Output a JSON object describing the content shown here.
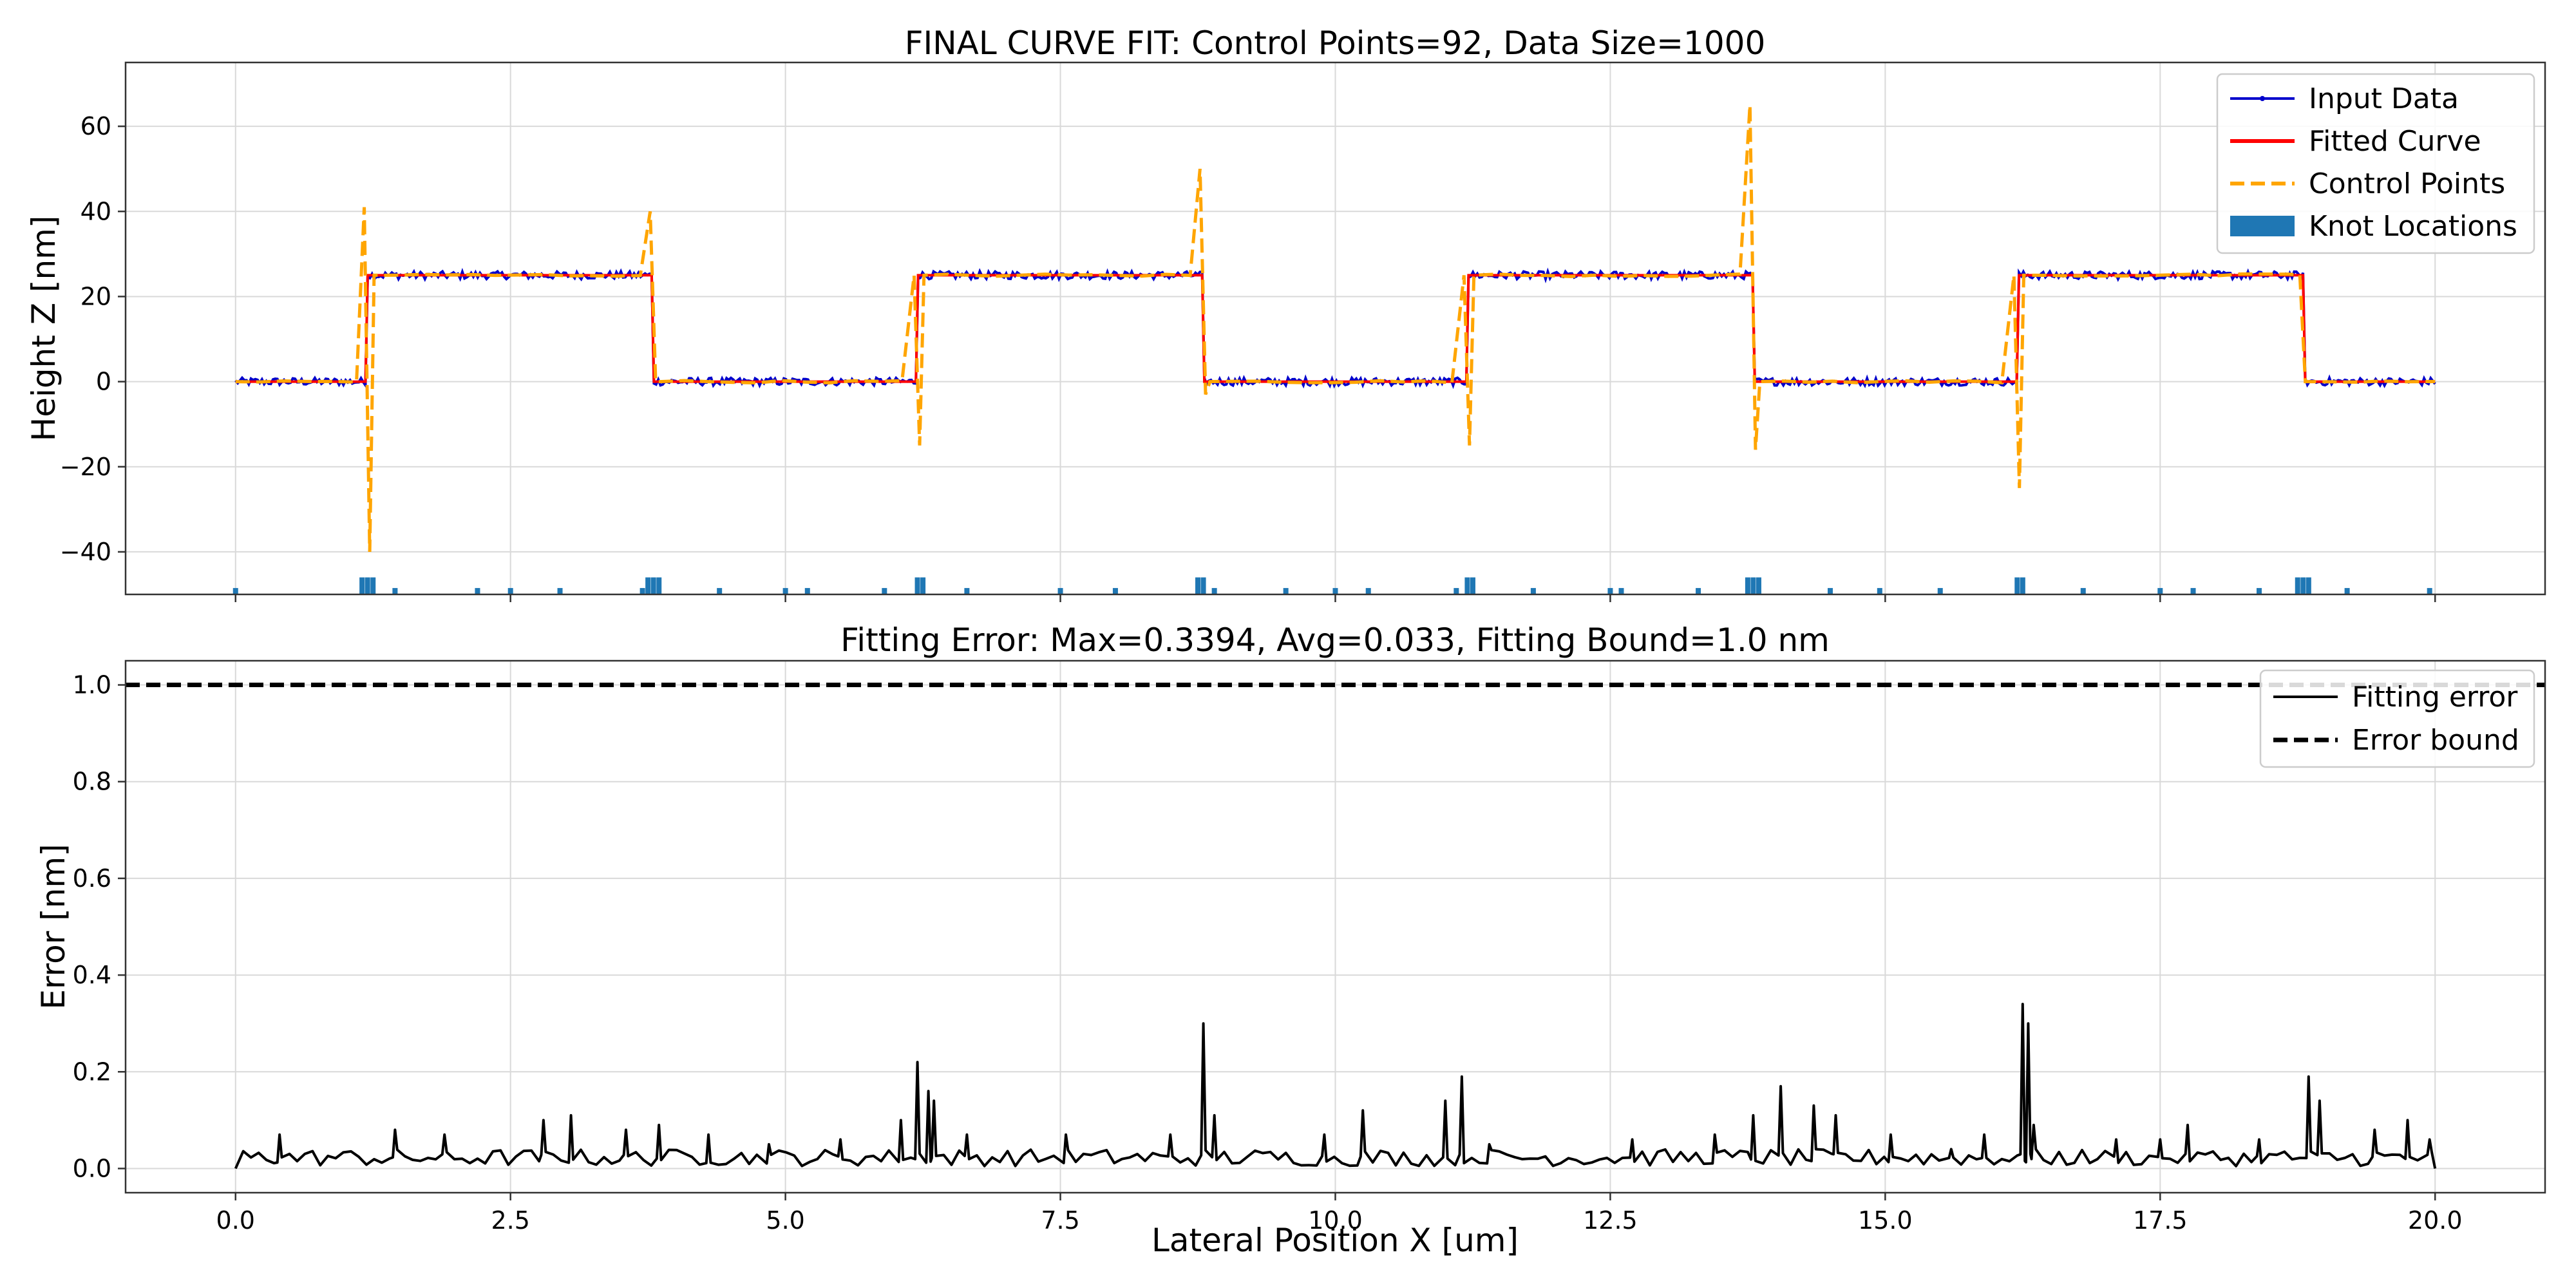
{
  "chart_data": [
    {
      "type": "line",
      "title": "FINAL CURVE FIT: Control Points=92, Data Size=1000",
      "xlabel": "",
      "ylabel": "Height Z [nm]",
      "xlim": [
        -1.0,
        21.0
      ],
      "ylim": [
        -50,
        75
      ],
      "x_ticks": [
        0.0,
        2.5,
        5.0,
        7.5,
        10.0,
        12.5,
        15.0,
        17.5,
        20.0
      ],
      "x_tick_labels": [
        "",
        "",
        "",
        "",
        "",
        "",
        "",
        "",
        ""
      ],
      "y_ticks": [
        -40,
        -20,
        0,
        20,
        40,
        60
      ],
      "y_tick_labels": [
        "−40",
        "−20",
        "0",
        "20",
        "40",
        "60"
      ],
      "grid": true,
      "legend_position": "top-right",
      "step_edges": [
        1.2,
        3.8,
        6.2,
        8.8,
        11.2,
        13.8,
        16.2,
        18.8
      ],
      "low_level": 0,
      "high_level": 25,
      "control_point_spikes": [
        {
          "x": 1.2,
          "high": 41,
          "low": -40
        },
        {
          "x": 3.8,
          "high": 40,
          "low": 0
        },
        {
          "x": 6.2,
          "high": 25,
          "low": -15
        },
        {
          "x": 8.8,
          "high": 50,
          "low": -3
        },
        {
          "x": 11.2,
          "high": 25,
          "low": -15
        },
        {
          "x": 13.8,
          "high": 65,
          "low": -16
        },
        {
          "x": 16.2,
          "high": 25,
          "low": -25
        },
        {
          "x": 18.8,
          "high": 25,
          "low": 0
        }
      ],
      "knot_locations": [
        0.0,
        1.15,
        1.2,
        1.25,
        1.45,
        2.2,
        2.5,
        2.95,
        3.7,
        3.75,
        3.8,
        3.85,
        4.4,
        5.0,
        5.2,
        5.9,
        6.2,
        6.25,
        6.65,
        7.5,
        8.0,
        8.75,
        8.8,
        8.9,
        9.55,
        10.0,
        10.3,
        11.1,
        11.2,
        11.25,
        11.8,
        12.5,
        12.6,
        13.3,
        13.75,
        13.8,
        13.85,
        14.5,
        14.95,
        15.5,
        16.2,
        16.25,
        16.8,
        17.5,
        17.8,
        18.4,
        18.75,
        18.8,
        18.85,
        19.2,
        19.95
      ],
      "series": [
        {
          "name": "Input Data",
          "color": "#0000cc",
          "style": "solid-marker"
        },
        {
          "name": "Fitted Curve",
          "color": "#ff0000",
          "style": "solid"
        },
        {
          "name": "Control Points",
          "color": "#ffa500",
          "style": "dashed"
        },
        {
          "name": "Knot Locations",
          "color": "#1f77b4",
          "style": "bar"
        }
      ]
    },
    {
      "type": "line",
      "title": "Fitting Error: Max=0.3394, Avg=0.033, Fitting Bound=1.0 nm",
      "xlabel": "Lateral Position X [um]",
      "ylabel": "Error [nm]",
      "xlim": [
        -1.0,
        21.0
      ],
      "ylim": [
        -0.05,
        1.05
      ],
      "x_ticks": [
        0.0,
        2.5,
        5.0,
        7.5,
        10.0,
        12.5,
        15.0,
        17.5,
        20.0
      ],
      "x_tick_labels": [
        "0.0",
        "2.5",
        "5.0",
        "7.5",
        "10.0",
        "12.5",
        "15.0",
        "17.5",
        "20.0"
      ],
      "y_ticks": [
        0.0,
        0.2,
        0.4,
        0.6,
        0.8,
        1.0
      ],
      "y_tick_labels": [
        "0.0",
        "0.2",
        "0.4",
        "0.6",
        "0.8",
        "1.0"
      ],
      "grid": true,
      "legend_position": "top-right",
      "error_bound": 1.0,
      "error_peaks": [
        {
          "x": 0.4,
          "y": 0.07
        },
        {
          "x": 1.45,
          "y": 0.08
        },
        {
          "x": 1.9,
          "y": 0.07
        },
        {
          "x": 2.8,
          "y": 0.1
        },
        {
          "x": 3.05,
          "y": 0.11
        },
        {
          "x": 3.55,
          "y": 0.08
        },
        {
          "x": 3.85,
          "y": 0.09
        },
        {
          "x": 4.3,
          "y": 0.07
        },
        {
          "x": 4.85,
          "y": 0.05
        },
        {
          "x": 5.5,
          "y": 0.06
        },
        {
          "x": 6.05,
          "y": 0.1
        },
        {
          "x": 6.2,
          "y": 0.22
        },
        {
          "x": 6.3,
          "y": 0.16
        },
        {
          "x": 6.35,
          "y": 0.14
        },
        {
          "x": 6.65,
          "y": 0.07
        },
        {
          "x": 7.55,
          "y": 0.07
        },
        {
          "x": 8.5,
          "y": 0.07
        },
        {
          "x": 8.8,
          "y": 0.3
        },
        {
          "x": 8.9,
          "y": 0.11
        },
        {
          "x": 9.9,
          "y": 0.07
        },
        {
          "x": 10.25,
          "y": 0.12
        },
        {
          "x": 11.0,
          "y": 0.14
        },
        {
          "x": 11.15,
          "y": 0.19
        },
        {
          "x": 11.4,
          "y": 0.05
        },
        {
          "x": 12.7,
          "y": 0.06
        },
        {
          "x": 13.45,
          "y": 0.07
        },
        {
          "x": 13.8,
          "y": 0.11
        },
        {
          "x": 14.05,
          "y": 0.17
        },
        {
          "x": 14.35,
          "y": 0.13
        },
        {
          "x": 14.55,
          "y": 0.11
        },
        {
          "x": 15.05,
          "y": 0.07
        },
        {
          "x": 15.6,
          "y": 0.04
        },
        {
          "x": 15.9,
          "y": 0.07
        },
        {
          "x": 16.25,
          "y": 0.34
        },
        {
          "x": 16.3,
          "y": 0.3
        },
        {
          "x": 16.35,
          "y": 0.09
        },
        {
          "x": 17.1,
          "y": 0.06
        },
        {
          "x": 17.5,
          "y": 0.06
        },
        {
          "x": 17.75,
          "y": 0.09
        },
        {
          "x": 18.4,
          "y": 0.06
        },
        {
          "x": 18.85,
          "y": 0.19
        },
        {
          "x": 18.95,
          "y": 0.14
        },
        {
          "x": 19.45,
          "y": 0.08
        },
        {
          "x": 19.75,
          "y": 0.1
        },
        {
          "x": 19.95,
          "y": 0.06
        }
      ],
      "series": [
        {
          "name": "Fitting error",
          "color": "#000000",
          "style": "solid"
        },
        {
          "name": "Error bound",
          "color": "#000000",
          "style": "dashed"
        }
      ]
    }
  ]
}
